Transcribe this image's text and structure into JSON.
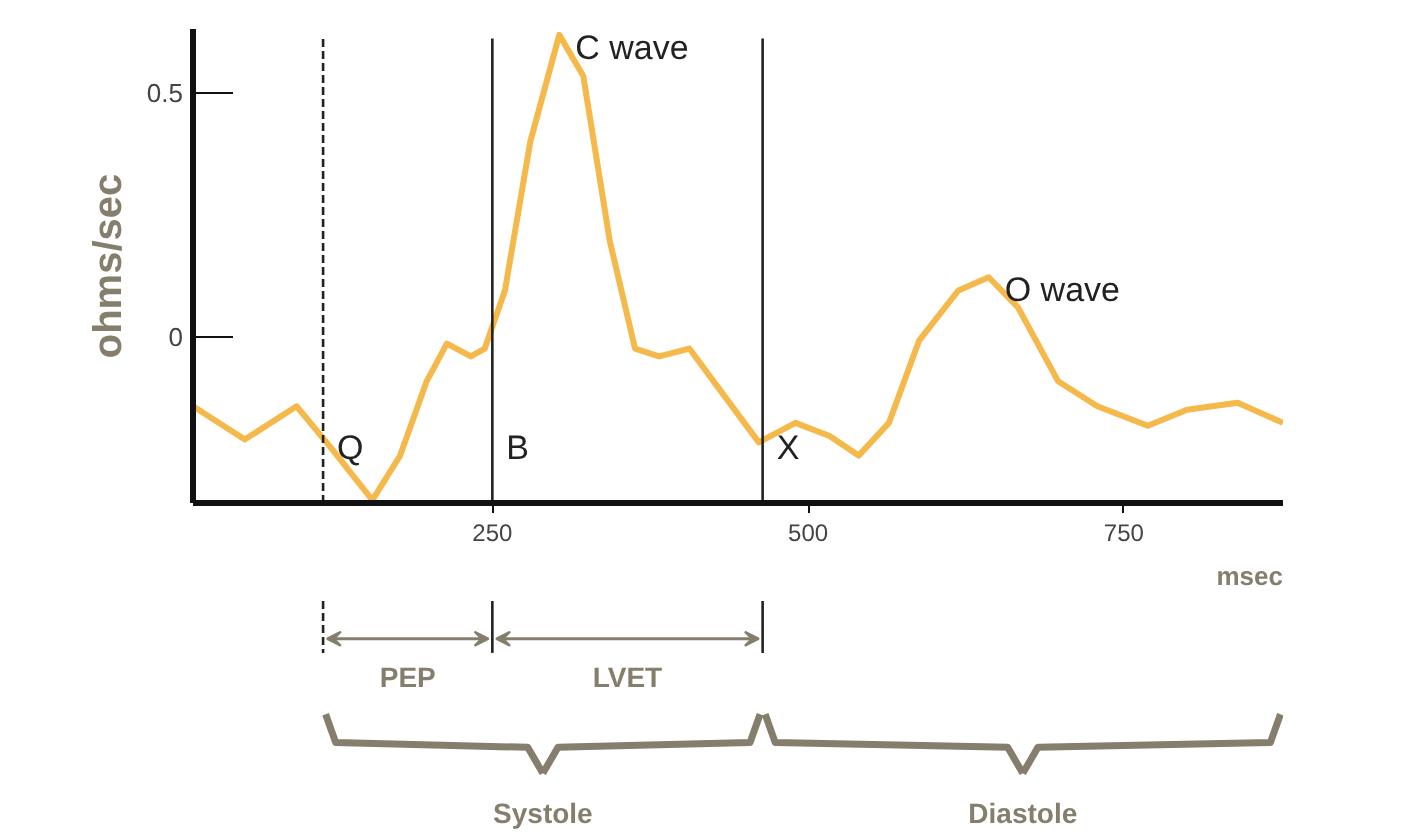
{
  "chart_data": {
    "type": "line",
    "xlabel": "msec",
    "ylabel": "ohms/sec",
    "x": [
      13,
      54,
      95,
      122,
      155,
      177,
      198,
      214,
      233,
      244,
      260,
      280,
      303,
      322,
      343,
      363,
      382,
      406,
      430,
      461,
      490,
      517,
      540,
      564,
      588,
      619,
      643,
      666,
      698,
      729,
      769,
      800,
      840,
      876
    ],
    "series": [
      {
        "color": "#f5b84a",
        "values": [
          -0.142,
          -0.21,
          -0.142,
          -0.226,
          -0.334,
          -0.243,
          -0.091,
          -0.014,
          -0.04,
          -0.024,
          0.095,
          0.399,
          0.618,
          0.534,
          0.196,
          -0.024,
          -0.04,
          -0.024,
          -0.108,
          -0.216,
          -0.176,
          -0.203,
          -0.243,
          -0.176,
          -0.007,
          0.095,
          0.122,
          0.061,
          -0.091,
          -0.142,
          -0.182,
          -0.149,
          -0.135,
          -0.176
        ]
      }
    ],
    "xlim": [
      13,
      876
    ],
    "ylim": [
      -0.34,
      0.63
    ],
    "xticks": [
      250,
      500,
      750
    ],
    "yticks": [
      0,
      0.5
    ],
    "grid": false,
    "marker": "none",
    "line_style": "solid",
    "ref_lines": [
      {
        "axis": "x",
        "value": 116,
        "label": "Q",
        "line_style": "dashed",
        "color": "#222222"
      },
      {
        "axis": "x",
        "value": 250,
        "label": "B",
        "color": "#222222"
      },
      {
        "axis": "x",
        "value": 464,
        "label": "X",
        "color": "#222222"
      }
    ],
    "annotations": [
      {
        "text": "C wave",
        "x": 303,
        "y": 0.618
      },
      {
        "text": "O wave",
        "x": 643,
        "y": 0.122
      },
      "PEP",
      "LVET",
      "Systole",
      "Diastole"
    ]
  }
}
